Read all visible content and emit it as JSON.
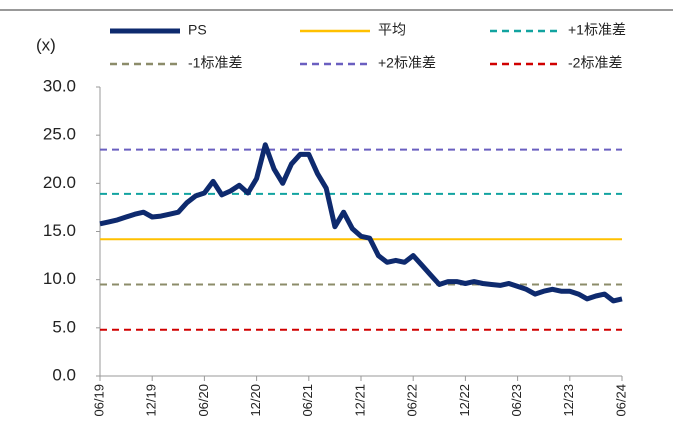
{
  "chart_data": {
    "type": "line",
    "unit_label": "(x)",
    "categories": [
      "06/19",
      null,
      null,
      null,
      null,
      null,
      "12/19",
      null,
      null,
      null,
      null,
      null,
      "06/20",
      null,
      null,
      null,
      null,
      null,
      "12/20",
      null,
      null,
      null,
      null,
      null,
      "06/21",
      null,
      null,
      null,
      null,
      null,
      "12/21",
      null,
      null,
      null,
      null,
      null,
      "06/22",
      null,
      null,
      null,
      null,
      null,
      "12/22",
      null,
      null,
      null,
      null,
      null,
      "06/23",
      null,
      null,
      null,
      null,
      null,
      "12/23",
      null,
      null,
      null,
      null,
      null,
      "06/24"
    ],
    "series": [
      {
        "name": "PS",
        "color": "#0e2a6e",
        "values": [
          15.8,
          16.0,
          16.2,
          16.5,
          16.8,
          17.0,
          16.5,
          16.6,
          16.8,
          17.0,
          18.0,
          18.7,
          19.0,
          20.2,
          18.8,
          19.2,
          19.8,
          19.0,
          20.5,
          24.0,
          21.5,
          20.0,
          22.0,
          23.0,
          23.0,
          21.0,
          19.5,
          15.5,
          17.0,
          15.3,
          14.5,
          14.3,
          12.5,
          11.8,
          12.0,
          11.8,
          12.5,
          11.5,
          10.5,
          9.5,
          9.8,
          9.8,
          9.6,
          9.8,
          9.6,
          9.5,
          9.4,
          9.6,
          9.3,
          9.0,
          8.5,
          8.8,
          9.0,
          8.8,
          8.8,
          8.5,
          8.0,
          8.3,
          8.5,
          7.8,
          8.0
        ]
      }
    ],
    "lines": [
      {
        "name": "平均",
        "color": "#ffc000",
        "value": 14.2,
        "dashed": false
      },
      {
        "name": "+1标准差",
        "color": "#12a3a0",
        "value": 18.9,
        "dashed": true
      },
      {
        "name": "-1标准差",
        "color": "#8c8c6a",
        "value": 9.5,
        "dashed": true
      },
      {
        "name": "+2标准差",
        "color": "#6a5fc0",
        "value": 23.5,
        "dashed": true
      },
      {
        "name": "-2标准差",
        "color": "#d00000",
        "value": 4.8,
        "dashed": true
      }
    ],
    "ylim": [
      0,
      30
    ],
    "yticks": [
      {
        "value": 0,
        "label": "0.0"
      },
      {
        "value": 5,
        "label": "5.0"
      },
      {
        "value": 10,
        "label": "10.0"
      },
      {
        "value": 15,
        "label": "15.0"
      },
      {
        "value": 20,
        "label": "20.0"
      },
      {
        "value": 25,
        "label": "25.0"
      },
      {
        "value": 30,
        "label": "30.0"
      }
    ]
  }
}
